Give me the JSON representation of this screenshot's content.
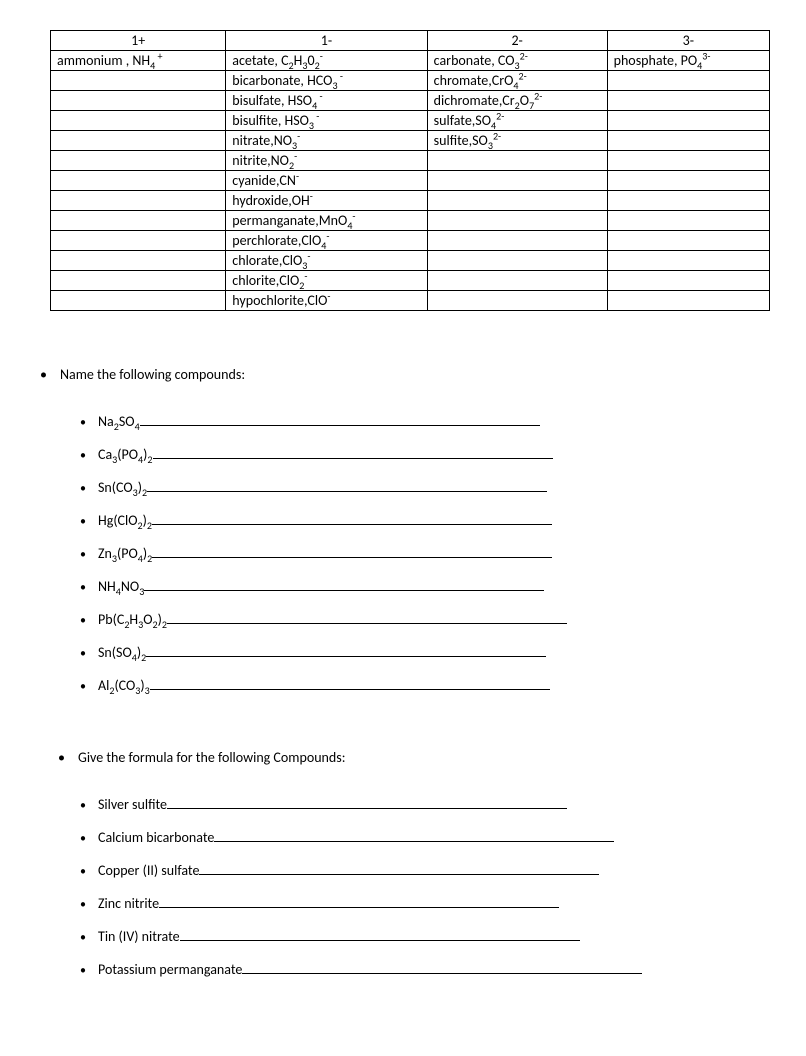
{
  "table": {
    "headers": [
      "1+",
      "1-",
      "2-",
      "3-"
    ],
    "rows": [
      [
        {
          "pre": "ammonium , NH",
          "sub": "4",
          "sup": " +"
        },
        {
          "pre": "acetate, C",
          "sub": "2",
          "mid": "H",
          "sub2": "3",
          "mid2": "0",
          "sub3": "2",
          "sup": "-"
        },
        {
          "pre": "carbonate, CO",
          "sub": "3",
          "sup": "2-"
        },
        {
          "pre": "phosphate, PO",
          "sub": "4",
          "sup": "3-"
        }
      ],
      [
        null,
        {
          "pre": "bicarbonate, HCO",
          "sub": "3",
          "sup": " -"
        },
        {
          "pre": "chromate,CrO",
          "sub": "4",
          "sup": "2-"
        },
        null
      ],
      [
        null,
        {
          "pre": "bisulfate, HSO",
          "sub": "4",
          "sup": " -"
        },
        {
          "pre": "dichromate,Cr",
          "sub": "2",
          "mid": "O",
          "sub2": "7",
          "sup": "2-"
        },
        null
      ],
      [
        null,
        {
          "pre": "bisulfite, HSO",
          "sub": "3",
          "sup": " -"
        },
        {
          "pre": "sulfate,SO",
          "sub": "4",
          "sup": "2-"
        },
        null
      ],
      [
        null,
        {
          "pre": "nitrate,NO",
          "sub": "3",
          "sup": "-"
        },
        {
          "pre": "sulfite,SO",
          "sub": "3",
          "sup": "2-"
        },
        null
      ],
      [
        null,
        {
          "pre": "nitrite,NO",
          "sub": "2",
          "sup": "-"
        },
        null,
        null
      ],
      [
        null,
        {
          "pre": "cyanide,CN",
          "sup": "-"
        },
        null,
        null
      ],
      [
        null,
        {
          "pre": "hydroxide,OH",
          "sup": "-"
        },
        null,
        null
      ],
      [
        null,
        {
          "pre": "permanganate,MnO",
          "sub": "4",
          "sup": "-"
        },
        null,
        null
      ],
      [
        null,
        {
          "pre": "perchlorate,ClO",
          "sub": "4",
          "sup": "-"
        },
        null,
        null
      ],
      [
        null,
        {
          "pre": "chlorate,ClO",
          "sub": "3",
          "sup": "-"
        },
        null,
        null
      ],
      [
        null,
        {
          "pre": "chlorite,ClO",
          "sub": "2",
          "sup": "-"
        },
        null,
        null
      ],
      [
        null,
        {
          "pre": "hypochlorite,ClO",
          "sup": "-"
        },
        null,
        null
      ]
    ]
  },
  "section1": {
    "title": "Name the following compounds:",
    "items": [
      {
        "parts": [
          {
            "t": "Na"
          },
          {
            "sub": "2"
          },
          {
            "t": "SO"
          },
          {
            "sub": "4"
          }
        ]
      },
      {
        "parts": [
          {
            "t": "Ca"
          },
          {
            "sub": "3"
          },
          {
            "t": "(PO"
          },
          {
            "sub": "4"
          },
          {
            "t": ")"
          },
          {
            "sub": "2"
          }
        ]
      },
      {
        "parts": [
          {
            "t": "Sn(CO"
          },
          {
            "sub": "3"
          },
          {
            "t": ")"
          },
          {
            "sub": "2"
          }
        ]
      },
      {
        "parts": [
          {
            "t": "Hg(ClO"
          },
          {
            "sub": "2"
          },
          {
            "t": ")"
          },
          {
            "sub": "2"
          }
        ]
      },
      {
        "parts": [
          {
            "t": "Zn"
          },
          {
            "sub": "3"
          },
          {
            "t": "(PO"
          },
          {
            "sub": "4"
          },
          {
            "t": ")"
          },
          {
            "sub": "2"
          },
          {
            "t": " "
          }
        ]
      },
      {
        "parts": [
          {
            "t": "NH"
          },
          {
            "sub": "4"
          },
          {
            "t": "NO"
          },
          {
            "sub": "3"
          }
        ]
      },
      {
        "parts": [
          {
            "t": "Pb(C"
          },
          {
            "sub": "2"
          },
          {
            "t": "H"
          },
          {
            "sub": "3"
          },
          {
            "t": "O"
          },
          {
            "sub": "2"
          },
          {
            "t": ")"
          },
          {
            "sub": "2"
          }
        ]
      },
      {
        "parts": [
          {
            "t": "Sn(SO"
          },
          {
            "sub": "4"
          },
          {
            "t": ")"
          },
          {
            "sub": "2"
          }
        ]
      },
      {
        "parts": [
          {
            "t": "Al"
          },
          {
            "sub": "2"
          },
          {
            "t": "(CO"
          },
          {
            "sub": "3"
          },
          {
            "t": ")"
          },
          {
            "sub": "3"
          }
        ]
      }
    ]
  },
  "section2": {
    "title": "Give the formula for the following Compounds:",
    "items": [
      "Silver sulfite",
      "Calcium bicarbonate",
      "Copper (II) sulfate",
      "Zinc nitrite",
      "Tin (IV) nitrate",
      "Potassium permanganate"
    ]
  }
}
